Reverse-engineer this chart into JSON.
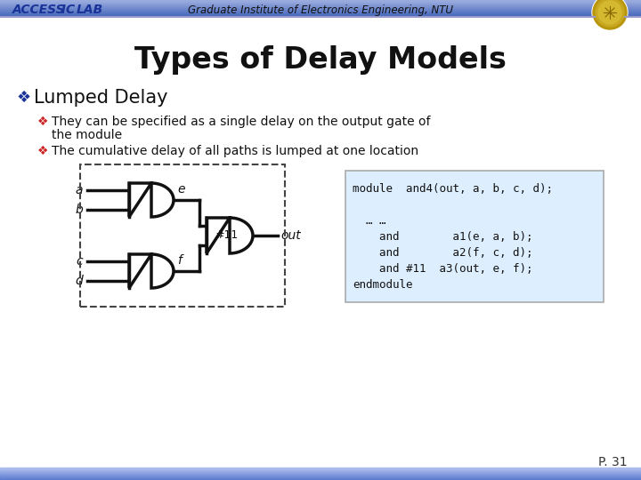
{
  "title": "Types of Delay Models",
  "header_left_1": "ACCESS",
  "header_left_2": " IC ",
  "header_left_3": "LAB",
  "header_center": "Graduate Institute of Electronics Engineering, NTU",
  "main_bullet": "Lumped Delay",
  "sub_bullet_1a": "They can be specified as a single delay on the output gate of",
  "sub_bullet_1b": "the module",
  "sub_bullet_2": "The cumulative delay of all paths is lumped at one location",
  "code_line1": "module  and4(out, a, b, c, d);",
  "code_line2": "  … …",
  "code_line3": "    and        a1(e, a, b);",
  "code_line4": "    and        a2(f, c, d);",
  "code_line5": "    and #11  a3(out, e, f);",
  "code_line6": "endmodule",
  "bg_color": "#ffffff",
  "header_bar_top_color": "#4466bb",
  "header_bar_bottom_color": "#8899dd",
  "footer_bar_color": "#6688cc",
  "title_color": "#111111",
  "access_color": "#1a3399",
  "ic_lab_color": "#1a3399",
  "bullet_color_main": "#1a3399",
  "bullet_color_sub": "#cc2222",
  "text_color": "#111111",
  "code_bg": "#ddeeff",
  "code_border": "#aaaaaa",
  "page_number": "P. 31",
  "wire_color": "#111111",
  "gate_color": "#111111"
}
